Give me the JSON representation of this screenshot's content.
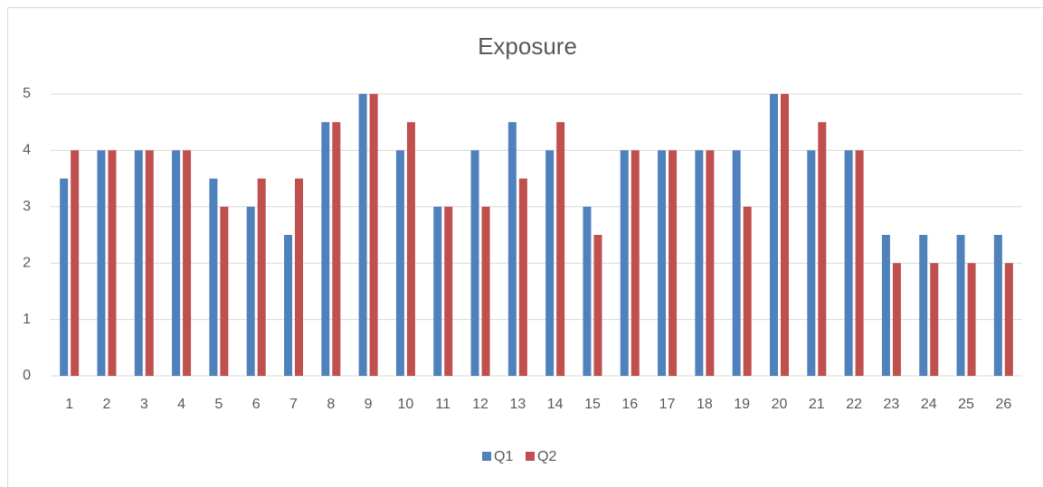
{
  "chart_data": {
    "type": "bar",
    "title": "Exposure",
    "categories": [
      "1",
      "2",
      "3",
      "4",
      "5",
      "6",
      "7",
      "8",
      "9",
      "10",
      "11",
      "12",
      "13",
      "14",
      "15",
      "16",
      "17",
      "18",
      "19",
      "20",
      "21",
      "22",
      "23",
      "24",
      "25",
      "26"
    ],
    "series": [
      {
        "name": "Q1",
        "color": "#4f81bd",
        "values": [
          3.5,
          4,
          4,
          4,
          3.5,
          3,
          2.5,
          4.5,
          5,
          4,
          3,
          4,
          4.5,
          4,
          3,
          4,
          4,
          4,
          4,
          5,
          4,
          4,
          2.5,
          2.5,
          2.5,
          2.5
        ]
      },
      {
        "name": "Q2",
        "color": "#c0504d",
        "values": [
          4,
          4,
          4,
          4,
          3,
          3.5,
          3.5,
          4.5,
          5,
          4.5,
          3,
          3,
          3.5,
          4.5,
          2.5,
          4,
          4,
          4,
          3,
          5,
          4.5,
          4,
          2,
          2,
          2,
          2
        ]
      }
    ],
    "ylim": [
      0,
      5
    ],
    "yticks": [
      0,
      1,
      2,
      3,
      4,
      5
    ],
    "grid": true,
    "legend": "bottom"
  }
}
